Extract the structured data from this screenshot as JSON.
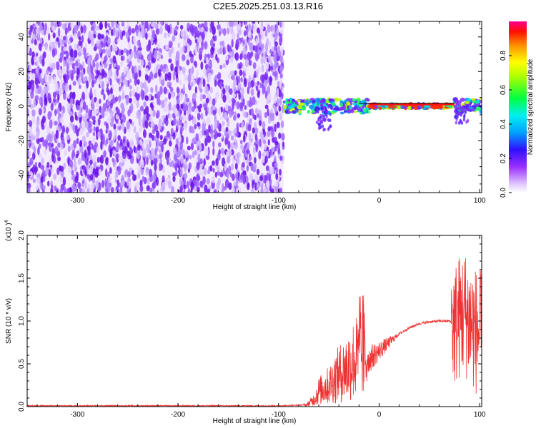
{
  "title": "C2E5.2025.251.03.13.R16",
  "chart_data": [
    {
      "type": "heatmap",
      "xlabel": "Height of straight line (km)",
      "ylabel": "Frequency (Hz)",
      "xlim": [
        -350,
        102
      ],
      "ylim": [
        -50,
        49
      ],
      "xticks": [
        -300,
        -200,
        -100,
        0,
        100
      ],
      "yticks": [
        -40,
        -20,
        0,
        20,
        40
      ],
      "noise_region_x": [
        -350,
        -95
      ],
      "signal_band": {
        "x_range": [
          -95,
          102
        ],
        "center_frequency_hz": 0,
        "line_level_hz": 1,
        "strongest_x_range": [
          -10,
          75
        ]
      },
      "colorbar": {
        "label": "Normalized spectral amplitude",
        "range": [
          0,
          1
        ],
        "ticks": [
          "0.0",
          "0.2",
          "0.4",
          "0.6",
          "0.8"
        ]
      }
    },
    {
      "type": "line",
      "xlabel": "Height of straight line (km)",
      "ylabel": "SNR (10 * v/v)",
      "y_multiplier": "(x10 )",
      "y_multiplier_exp": "4",
      "xlim": [
        -350,
        102
      ],
      "ylim": [
        0,
        2.0
      ],
      "xticks": [
        -300,
        -200,
        -100,
        0,
        100
      ],
      "yticks": [
        "0.0",
        "0.5",
        "1.0",
        "1.5",
        "2.0"
      ],
      "color": "#ee3333",
      "series": [
        {
          "x": [
            -350,
            -100,
            -72,
            -65,
            -60,
            -55,
            -50,
            -45,
            -40,
            -35,
            -30,
            -25,
            -20,
            -15,
            -10,
            0,
            10,
            20,
            30,
            40,
            50,
            60,
            70,
            75,
            80,
            85,
            90,
            95,
            100
          ],
          "y": [
            0.01,
            0.01,
            0.02,
            0.08,
            0.18,
            0.22,
            0.25,
            0.32,
            0.38,
            0.42,
            0.48,
            0.55,
            0.58,
            0.6,
            0.55,
            0.65,
            0.75,
            0.85,
            0.92,
            0.97,
            0.99,
            1.0,
            1.0,
            0.95,
            1.05,
            1.1,
            1.0,
            0.9,
            0.85
          ]
        }
      ]
    }
  ]
}
